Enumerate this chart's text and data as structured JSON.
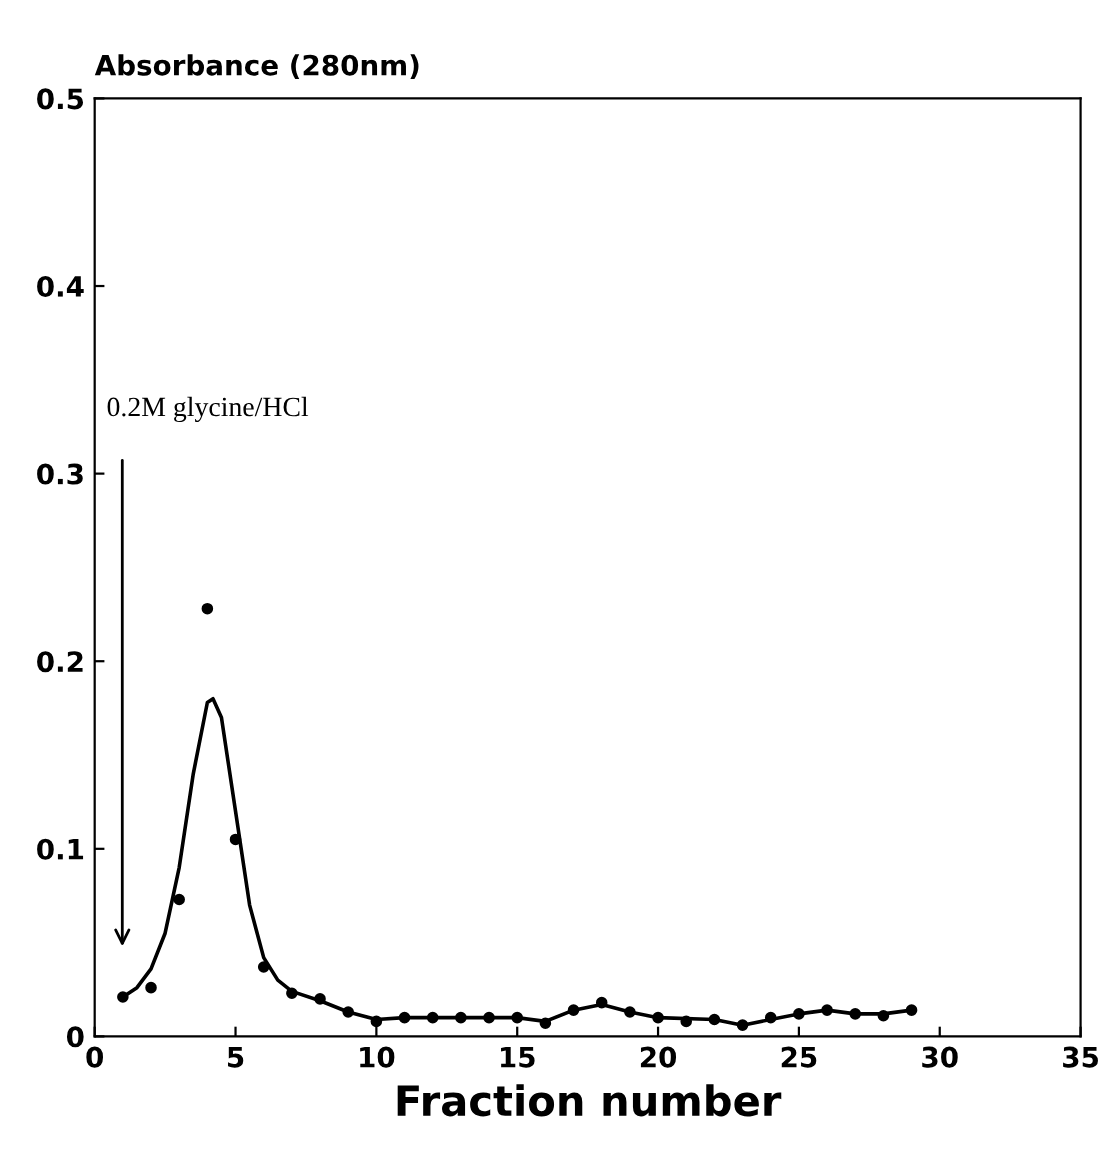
{
  "chart_data": {
    "type": "scatter",
    "ylabel": "Absorbance (280nm)",
    "xlabel": "Fraction number",
    "xlim": [
      0,
      35
    ],
    "xticks": [
      0,
      5,
      10,
      15,
      20,
      25,
      30,
      35
    ],
    "ylim": [
      0,
      0.5
    ],
    "yticks": [
      0,
      0.1,
      0.2,
      0.3,
      0.4,
      0.5
    ],
    "grid": false,
    "legend": false,
    "annotations": [
      "0.2M glycine/HCl"
    ],
    "series": [
      {
        "marker": "circle",
        "color": "#000000",
        "x": [
          1,
          2,
          3,
          4,
          5,
          6,
          7,
          8,
          9,
          10,
          11,
          12,
          13,
          14,
          15,
          16,
          17,
          18,
          19,
          20,
          21,
          22,
          23,
          24,
          25,
          26,
          27,
          28,
          29
        ],
        "values": [
          0.021,
          0.026,
          0.073,
          0.228,
          0.105,
          0.037,
          0.023,
          0.02,
          0.013,
          0.008,
          0.01,
          0.01,
          0.01,
          0.01,
          0.01,
          0.007,
          0.014,
          0.018,
          0.013,
          0.01,
          0.008,
          0.009,
          0.006,
          0.01,
          0.012,
          0.014,
          0.012,
          0.011,
          0.014
        ]
      },
      {
        "type": "line",
        "marker": "none",
        "color": "#000000",
        "line_style": "solid",
        "x": [
          1,
          1.5,
          2,
          2.5,
          3,
          3.5,
          4,
          4.2,
          4.5,
          5,
          5.5,
          6,
          6.5,
          7,
          8,
          9,
          10,
          11,
          15,
          16,
          17,
          18,
          19,
          20,
          22,
          23,
          25,
          26,
          27,
          28,
          29
        ],
        "values": [
          0.021,
          0.026,
          0.036,
          0.055,
          0.09,
          0.14,
          0.178,
          0.18,
          0.17,
          0.12,
          0.07,
          0.042,
          0.03,
          0.024,
          0.019,
          0.013,
          0.009,
          0.01,
          0.01,
          0.008,
          0.014,
          0.017,
          0.013,
          0.01,
          0.009,
          0.006,
          0.012,
          0.014,
          0.012,
          0.012,
          0.014
        ]
      }
    ]
  }
}
